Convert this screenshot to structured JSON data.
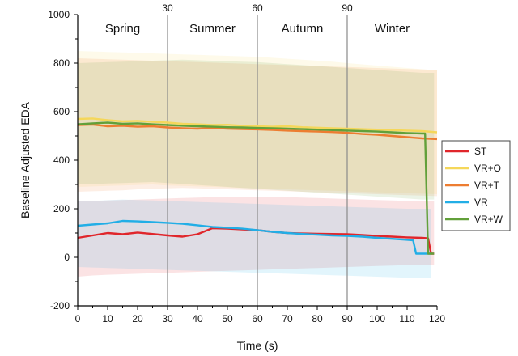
{
  "chart_data": {
    "type": "line",
    "xlabel": "Time (s)",
    "ylabel": "Baseline Adjusted EDA",
    "xlim": [
      0,
      120
    ],
    "ylim": [
      -200,
      1000
    ],
    "x_ticks": [
      "0",
      "10",
      "20",
      "30",
      "40",
      "50",
      "60",
      "70",
      "80",
      "90",
      "100",
      "110",
      "120"
    ],
    "y_ticks": [
      "-200",
      "0",
      "200",
      "400",
      "600",
      "800",
      "1000"
    ],
    "seasons": [
      {
        "label": "Spring",
        "x": 15
      },
      {
        "label": "Summer",
        "x": 45
      },
      {
        "label": "Autumn",
        "x": 75
      },
      {
        "label": "Winter",
        "x": 105
      }
    ],
    "vertical_markers": [
      {
        "x": 30,
        "label": "30"
      },
      {
        "x": 60,
        "label": "60"
      },
      {
        "x": 90,
        "label": "90"
      }
    ],
    "legend_position": "right",
    "series": [
      {
        "name": "ST",
        "color": "#e0262b",
        "x": [
          0,
          5,
          10,
          15,
          20,
          25,
          30,
          35,
          40,
          45,
          50,
          55,
          60,
          65,
          70,
          75,
          80,
          85,
          90,
          95,
          100,
          105,
          110,
          115,
          117,
          118,
          119
        ],
        "values": [
          80,
          90,
          100,
          95,
          102,
          96,
          90,
          85,
          95,
          120,
          118,
          115,
          112,
          105,
          100,
          98,
          97,
          96,
          95,
          92,
          88,
          85,
          82,
          80,
          78,
          15,
          15
        ],
        "band_upper": [
          230,
          232,
          234,
          236,
          238,
          240,
          242,
          244,
          246,
          248,
          250,
          250,
          250,
          250,
          248,
          246,
          244,
          242,
          240,
          238,
          236,
          234,
          232,
          230,
          230,
          230,
          230
        ],
        "band_lower": [
          -80,
          -75,
          -72,
          -70,
          -68,
          -66,
          -64,
          -62,
          -60,
          -58,
          -56,
          -54,
          -52,
          -50,
          -48,
          -46,
          -44,
          -42,
          -40,
          -38,
          -36,
          -34,
          -32,
          -30,
          -30,
          -30,
          -30
        ]
      },
      {
        "name": "VR+O",
        "color": "#f5d75a",
        "x": [
          0,
          5,
          10,
          15,
          20,
          25,
          30,
          35,
          40,
          45,
          50,
          55,
          60,
          65,
          70,
          75,
          80,
          85,
          90,
          95,
          100,
          105,
          110,
          115,
          120
        ],
        "values": [
          570,
          572,
          565,
          560,
          562,
          558,
          555,
          550,
          548,
          545,
          546,
          542,
          540,
          538,
          540,
          536,
          534,
          532,
          530,
          528,
          526,
          524,
          522,
          520,
          515
        ],
        "band_upper": [
          850,
          848,
          846,
          844,
          842,
          840,
          838,
          836,
          834,
          832,
          830,
          828,
          826,
          822,
          818,
          814,
          810,
          806,
          800,
          795,
          790,
          785,
          780,
          775,
          770
        ],
        "band_lower": [
          290,
          292,
          294,
          296,
          298,
          300,
          296,
          294,
          292,
          290,
          288,
          286,
          284,
          282,
          280,
          278,
          276,
          274,
          272,
          270,
          268,
          266,
          264,
          262,
          260
        ]
      },
      {
        "name": "VR+T",
        "color": "#ed7d31",
        "x": [
          0,
          5,
          10,
          15,
          20,
          25,
          30,
          35,
          40,
          45,
          50,
          55,
          60,
          65,
          70,
          75,
          80,
          85,
          90,
          95,
          100,
          105,
          110,
          115,
          120
        ],
        "values": [
          545,
          547,
          540,
          542,
          538,
          540,
          535,
          532,
          530,
          533,
          530,
          528,
          527,
          525,
          522,
          520,
          518,
          516,
          513,
          508,
          505,
          500,
          495,
          490,
          487
        ],
        "band_upper": [
          820,
          818,
          816,
          814,
          812,
          810,
          808,
          806,
          804,
          802,
          800,
          798,
          796,
          794,
          792,
          790,
          788,
          786,
          784,
          782,
          780,
          778,
          776,
          774,
          772
        ],
        "band_lower": [
          270,
          272,
          274,
          276,
          280,
          282,
          284,
          286,
          284,
          282,
          280,
          278,
          276,
          274,
          272,
          270,
          268,
          266,
          264,
          262,
          260,
          258,
          256,
          254,
          252
        ]
      },
      {
        "name": "VR",
        "color": "#22aee6",
        "x": [
          0,
          5,
          10,
          15,
          20,
          25,
          30,
          35,
          40,
          45,
          50,
          55,
          60,
          65,
          70,
          75,
          80,
          85,
          90,
          95,
          100,
          105,
          110,
          112,
          113,
          115,
          118
        ],
        "values": [
          130,
          135,
          140,
          150,
          148,
          145,
          142,
          138,
          132,
          125,
          122,
          118,
          112,
          105,
          100,
          96,
          93,
          90,
          88,
          85,
          80,
          76,
          72,
          70,
          15,
          15,
          15
        ],
        "band_upper": [
          230,
          232,
          235,
          238,
          236,
          234,
          232,
          230,
          228,
          226,
          224,
          222,
          220,
          218,
          216,
          214,
          212,
          210,
          208,
          206,
          204,
          202,
          200,
          200,
          200,
          200,
          200
        ],
        "band_lower": [
          -40,
          -42,
          -44,
          -46,
          -48,
          -50,
          -52,
          -54,
          -56,
          -58,
          -60,
          -62,
          -64,
          -66,
          -68,
          -70,
          -72,
          -74,
          -76,
          -78,
          -80,
          -82,
          -84,
          -84,
          -84,
          -84,
          -84
        ]
      },
      {
        "name": "VR+W",
        "color": "#62a03a",
        "x": [
          0,
          5,
          10,
          15,
          20,
          25,
          30,
          35,
          40,
          45,
          50,
          55,
          60,
          65,
          70,
          75,
          80,
          85,
          90,
          95,
          100,
          105,
          110,
          115,
          116,
          117,
          118,
          119
        ],
        "values": [
          548,
          552,
          555,
          550,
          552,
          548,
          545,
          542,
          540,
          538,
          536,
          535,
          533,
          532,
          530,
          528,
          526,
          524,
          522,
          520,
          518,
          515,
          512,
          510,
          510,
          15,
          15,
          15
        ],
        "band_upper": [
          800,
          802,
          804,
          806,
          808,
          810,
          812,
          814,
          812,
          810,
          808,
          806,
          804,
          800,
          796,
          792,
          788,
          784,
          780,
          776,
          772,
          768,
          764,
          760,
          760,
          760,
          760,
          760
        ],
        "band_lower": [
          300,
          302,
          304,
          306,
          308,
          310,
          306,
          302,
          298,
          294,
          290,
          286,
          282,
          278,
          274,
          270,
          266,
          262,
          258,
          254,
          250,
          246,
          242,
          238,
          238,
          238,
          238,
          238
        ]
      }
    ]
  }
}
